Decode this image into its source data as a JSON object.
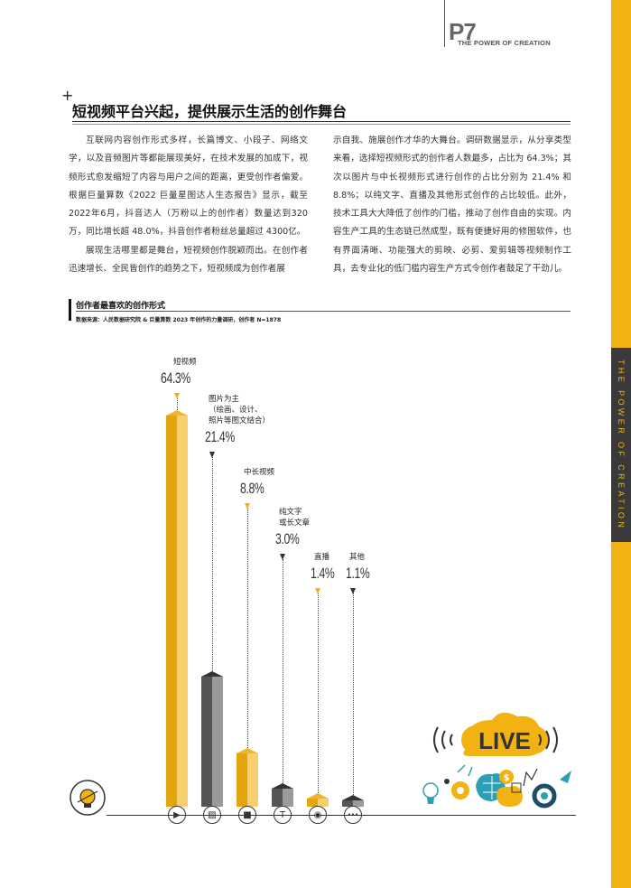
{
  "header": {
    "page_number": "P7",
    "page_subtitle": "THE POWER OF CREATION",
    "side_text": "THE POWER OF CREATION"
  },
  "article": {
    "title": "短视频平台兴起，提供展示生活的创作舞台",
    "col1": [
      "互联网内容创作形式多样，长篇博文、小段子、网络文学，以及音频图片等都能展现美好，在技术发展的加成下，视频形式愈发缩短了内容与用户之间的距离，更受创作者偏爱。根据巨量算数《2022 巨量星图达人生态报告》显示，截至2022年6月，抖音达人（万粉以上的创作者）数量达到320万，同比增长超 48.0%，抖音创作者粉丝总量超过 4300亿。",
      "展现生活哪里都是舞台，短视频创作脱颖而出。在创作者迅速增长、全民皆创作的趋势之下，短视频成为创作者展"
    ],
    "col2": "示自我、施展创作才华的大舞台。调研数据显示，从分享类型来看，选择短视频形式的创作者人数最多，占比为 64.3%；其次以图片与中长视频形式进行创作的占比分别为 21.4% 和 8.8%；以纯文字、直播及其他形式创作的占比较低。此外，技术工具大大降低了创作的门槛，推动了创作自由的实现。内容生产工具的生态链已然成型，既有便捷好用的修图软件，也有界面清晰、功能强大的剪映、必剪、爱剪辑等视频制作工具，去专业化的低门槛内容生产方式令创作者鼓足了干劲儿。"
  },
  "chart_data": {
    "type": "bar",
    "title": "创作者最喜欢的创作形式",
    "source": "数据来源：人民数据研究院 & 巨量算数 2023 年创作的力量调研，创作者 N=1878",
    "categories": [
      "短视频",
      "图片为主\n（绘画、设计、\n照片等图文结合）",
      "中长视频",
      "纯文字\n或长文章",
      "直播",
      "其他"
    ],
    "values": [
      64.3,
      21.4,
      8.8,
      3.0,
      1.4,
      1.1
    ],
    "value_labels": [
      "64.3%",
      "21.4%",
      "8.8%",
      "3.0%",
      "1.4%",
      "1.1%"
    ],
    "icons": [
      "play-icon",
      "image-icon",
      "video-camera-icon",
      "text-icon",
      "live-icon",
      "more-icon"
    ],
    "colors": [
      "#e3a40e",
      "#555555",
      "#e3a40e",
      "#555555",
      "#e3a40e",
      "#555555"
    ]
  },
  "illustration": {
    "live_badge": "LIVE"
  }
}
